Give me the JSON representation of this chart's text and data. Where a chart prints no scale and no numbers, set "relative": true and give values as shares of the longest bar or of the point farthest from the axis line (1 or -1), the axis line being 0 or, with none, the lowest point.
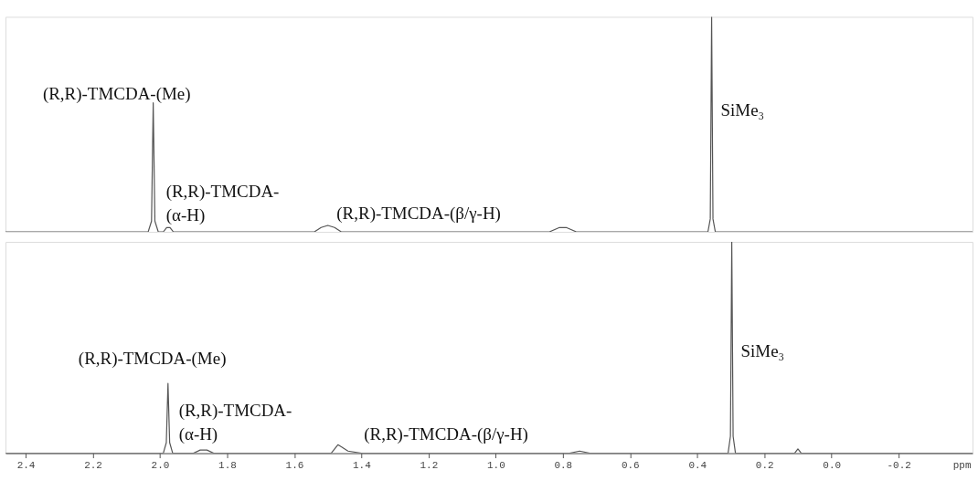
{
  "chart_data": [
    {
      "type": "line",
      "relative": true,
      "xlim": [
        2.46,
        -0.42
      ],
      "tick_labels": false,
      "series": [
        {
          "color": "#555555",
          "x": [
            2.46,
            2.035,
            2.025,
            2.02,
            2.015,
            2.005,
            1.99,
            1.98,
            1.97,
            1.96,
            1.54,
            1.52,
            1.5,
            1.48,
            1.46,
            0.84,
            0.81,
            0.79,
            0.76,
            0.38,
            0.368,
            0.361,
            0.357,
            0.353,
            0.346,
            0.33,
            -0.42
          ],
          "values": [
            0,
            0,
            0.05,
            0.6,
            0.05,
            0,
            0,
            0.02,
            0.02,
            0,
            0,
            0.02,
            0.03,
            0.02,
            0,
            0,
            0.02,
            0.02,
            0,
            0,
            0,
            0.06,
            1,
            0.06,
            0,
            0,
            0
          ]
        }
      ],
      "annotations": [
        "(R,R)-TMCDA-(Me)",
        "(R,R)-TMCDA-\n(α-H)",
        "(R,R)-TMCDA-(β/γ-H)",
        "SiMe₃"
      ]
    },
    {
      "type": "line",
      "relative": true,
      "xlim": [
        2.46,
        -0.42
      ],
      "xlabel": "ppm",
      "xticks": [
        2.4,
        2.2,
        {
          "value": 2,
          "label": "2.0"
        },
        1.8,
        1.6,
        1.4,
        1.2,
        {
          "value": 1,
          "label": "1.0"
        },
        0.8,
        0.6,
        0.4,
        0.2,
        {
          "value": 0,
          "label": "0.0"
        },
        -0.2
      ],
      "series": [
        {
          "color": "#555555",
          "x": [
            2.46,
            1.99,
            1.981,
            1.976,
            1.971,
            1.962,
            1.9,
            1.88,
            1.86,
            1.84,
            1.49,
            1.47,
            1.46,
            1.44,
            1.4,
            0.78,
            0.75,
            0.72,
            0.32,
            0.308,
            0.301,
            0.297,
            0.293,
            0.286,
            0.275,
            0.11,
            0.1,
            0.09,
            -0.42
          ],
          "values": [
            0,
            0,
            0.05,
            0.33,
            0.05,
            0,
            0,
            0.015,
            0.015,
            0,
            0,
            0.04,
            0.03,
            0.01,
            0,
            0,
            0.01,
            0,
            0,
            0,
            0.08,
            1,
            0.08,
            0,
            0,
            0,
            0.02,
            0,
            0
          ]
        }
      ],
      "annotations": [
        "(R,R)-TMCDA-(Me)",
        "(R,R)-TMCDA-\n(α-H)",
        "(R,R)-TMCDA-(β/γ-H)",
        "SiMe₃"
      ]
    }
  ]
}
